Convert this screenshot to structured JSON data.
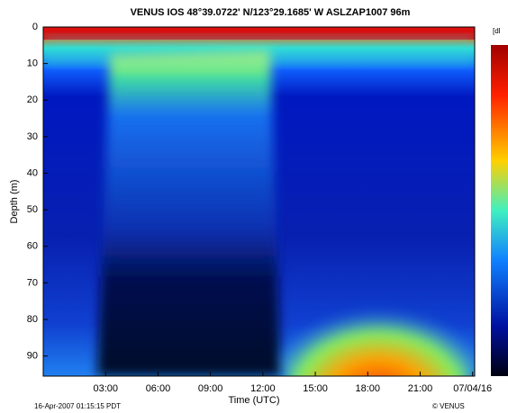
{
  "chart_data": {
    "type": "heatmap",
    "title": "VENUS   IOS   48°39.0722' N/123°29.1685' W   ASLZAP1007   96m",
    "xlabel": "Time (UTC)",
    "ylabel": "Depth (m)",
    "xlim": [
      -0.57,
      24.12
    ],
    "xticks": [
      {
        "value": 3,
        "label": "03:00"
      },
      {
        "value": 6,
        "label": "06:00"
      },
      {
        "value": 9,
        "label": "09:00"
      },
      {
        "value": 12,
        "label": "12:00"
      },
      {
        "value": 15,
        "label": "15:00"
      },
      {
        "value": 18,
        "label": "18:00"
      },
      {
        "value": 21,
        "label": "21:00"
      },
      {
        "value": 24,
        "label": "07/04/16"
      }
    ],
    "ylim": [
      0,
      95.5
    ],
    "yticks": [
      0,
      10,
      20,
      30,
      40,
      50,
      60,
      70,
      80,
      90
    ],
    "colorbar_label": "[dl",
    "footer_left": "16-Apr-2007 01:15:15 PDT",
    "footer_right": "© VENUS"
  }
}
